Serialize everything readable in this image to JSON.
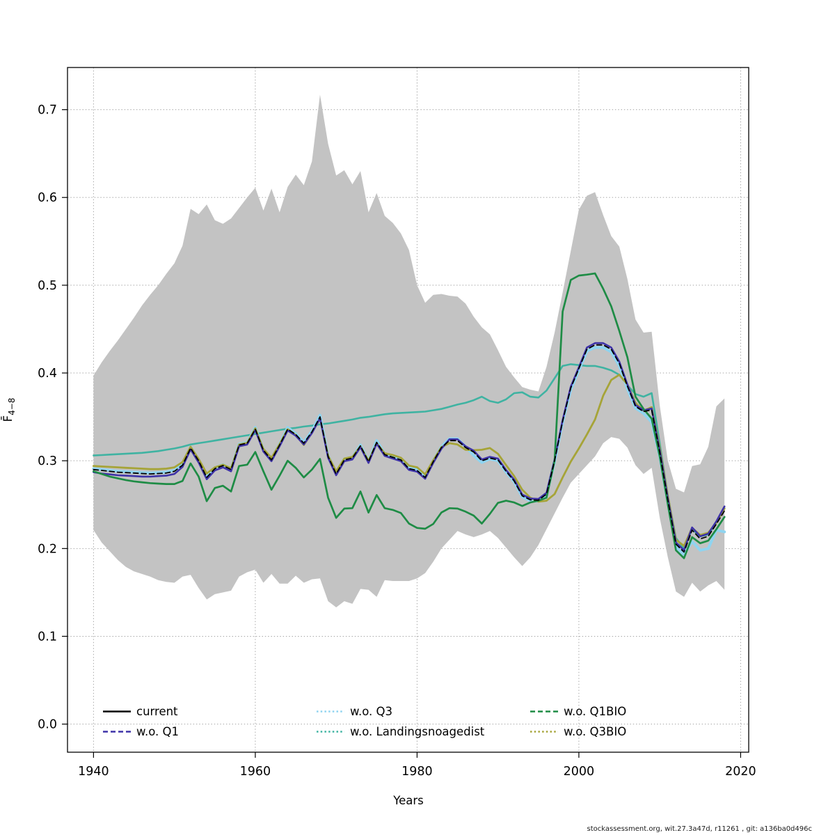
{
  "figure": {
    "background": "#ffffff"
  },
  "footer": {
    "text": "stockassessment.org, wit.27.3a47d, r11261 , git: a136ba0d496c"
  },
  "axes": {
    "xlabel": "Years",
    "ylabel_base": "F̄",
    "ylabel_sub": "4−8"
  },
  "legend": {
    "position": "bottom-inside",
    "items": [
      {
        "key": "current",
        "label": "current",
        "color": "#000000",
        "dash": "solid"
      },
      {
        "key": "wo_q1",
        "label": "w.o. Q1",
        "color": "#3e32a8",
        "dash": "dashed"
      },
      {
        "key": "wo_q3",
        "label": "w.o. Q3",
        "color": "#8fd4f0",
        "dash": "dotted"
      },
      {
        "key": "wo_landingsnoagedist",
        "label": "w.o. Landingsnoagedist",
        "color": "#3fb3a2",
        "dash": "dotted"
      },
      {
        "key": "wo_q1bio",
        "label": "w.o. Q1BIO",
        "color": "#1e8c45",
        "dash": "dashed"
      },
      {
        "key": "wo_q3bio",
        "label": "w.o. Q3BIO",
        "color": "#a6a438",
        "dash": "dotted"
      }
    ]
  },
  "chart_data": {
    "type": "line",
    "title": "",
    "xlabel": "Years",
    "ylabel": "F̄(4−8)",
    "grid": true,
    "xlim": [
      1936.8,
      2021
    ],
    "ylim": [
      -0.032,
      0.748
    ],
    "x_ticks": [
      {
        "label": "1940",
        "value": 1940
      },
      {
        "label": "1960",
        "value": 1960
      },
      {
        "label": "1980",
        "value": 1980
      },
      {
        "label": "2000",
        "value": 2000
      },
      {
        "label": "2020",
        "value": 2020
      }
    ],
    "y_ticks": [
      {
        "label": "0.0",
        "value": 0.0
      },
      {
        "label": "0.1",
        "value": 0.1
      },
      {
        "label": "0.2",
        "value": 0.2
      },
      {
        "label": "0.3",
        "value": 0.3
      },
      {
        "label": "0.4",
        "value": 0.4
      },
      {
        "label": "0.5",
        "value": 0.5
      },
      {
        "label": "0.6",
        "value": 0.6
      },
      {
        "label": "0.7",
        "value": 0.7
      }
    ],
    "years": [
      1940,
      1941,
      1942,
      1943,
      1944,
      1945,
      1946,
      1947,
      1948,
      1949,
      1950,
      1951,
      1952,
      1953,
      1954,
      1955,
      1956,
      1957,
      1958,
      1959,
      1960,
      1961,
      1962,
      1963,
      1964,
      1965,
      1966,
      1967,
      1968,
      1969,
      1970,
      1971,
      1972,
      1973,
      1974,
      1975,
      1976,
      1977,
      1978,
      1979,
      1980,
      1981,
      1982,
      1983,
      1984,
      1985,
      1986,
      1987,
      1988,
      1989,
      1990,
      1991,
      1992,
      1993,
      1994,
      1995,
      1996,
      1997,
      1998,
      1999,
      2000,
      2001,
      2002,
      2003,
      2004,
      2005,
      2006,
      2007,
      2008,
      2009,
      2010,
      2011,
      2012,
      2013,
      2014,
      2015,
      2016,
      2017,
      2018
    ],
    "band": {
      "name": "confidence-band",
      "color": "#c3c3c3",
      "upper": [
        0.397,
        0.412,
        0.425,
        0.437,
        0.45,
        0.463,
        0.477,
        0.489,
        0.5,
        0.513,
        0.525,
        0.545,
        0.587,
        0.581,
        0.592,
        0.574,
        0.57,
        0.576,
        0.588,
        0.6,
        0.611,
        0.585,
        0.61,
        0.583,
        0.612,
        0.626,
        0.614,
        0.641,
        0.717,
        0.661,
        0.625,
        0.631,
        0.615,
        0.63,
        0.583,
        0.605,
        0.579,
        0.571,
        0.559,
        0.54,
        0.5,
        0.48,
        0.489,
        0.49,
        0.488,
        0.487,
        0.479,
        0.464,
        0.452,
        0.444,
        0.426,
        0.407,
        0.395,
        0.384,
        0.381,
        0.379,
        0.407,
        0.446,
        0.492,
        0.539,
        0.586,
        0.602,
        0.606,
        0.58,
        0.556,
        0.544,
        0.507,
        0.461,
        0.446,
        0.447,
        0.363,
        0.3,
        0.268,
        0.264,
        0.294,
        0.296,
        0.316,
        0.362,
        0.371
      ],
      "lower": [
        0.221,
        0.207,
        0.197,
        0.187,
        0.179,
        0.174,
        0.171,
        0.168,
        0.164,
        0.162,
        0.161,
        0.168,
        0.17,
        0.155,
        0.142,
        0.148,
        0.15,
        0.152,
        0.168,
        0.173,
        0.176,
        0.161,
        0.171,
        0.16,
        0.16,
        0.169,
        0.161,
        0.165,
        0.166,
        0.14,
        0.133,
        0.14,
        0.137,
        0.154,
        0.153,
        0.145,
        0.164,
        0.163,
        0.163,
        0.163,
        0.166,
        0.172,
        0.185,
        0.2,
        0.21,
        0.22,
        0.216,
        0.213,
        0.216,
        0.22,
        0.212,
        0.201,
        0.19,
        0.18,
        0.19,
        0.204,
        0.222,
        0.24,
        0.258,
        0.275,
        0.285,
        0.295,
        0.305,
        0.32,
        0.327,
        0.325,
        0.315,
        0.295,
        0.285,
        0.292,
        0.235,
        0.19,
        0.151,
        0.145,
        0.161,
        0.151,
        0.158,
        0.163,
        0.153
      ]
    },
    "series": [
      {
        "key": "wo_landingsnoagedist",
        "name": "w.o. Landingsnoagedist",
        "color": "#3fb3a2",
        "values": [
          0.306,
          0.3065,
          0.307,
          0.3075,
          0.308,
          0.3085,
          0.309,
          0.31,
          0.311,
          0.3125,
          0.314,
          0.316,
          0.3185,
          0.32,
          0.3215,
          0.323,
          0.3245,
          0.326,
          0.3275,
          0.329,
          0.3305,
          0.332,
          0.3335,
          0.335,
          0.3365,
          0.3375,
          0.339,
          0.34,
          0.3415,
          0.3425,
          0.344,
          0.3455,
          0.347,
          0.349,
          0.35,
          0.3515,
          0.353,
          0.354,
          0.3545,
          0.355,
          0.3555,
          0.356,
          0.3575,
          0.359,
          0.3615,
          0.364,
          0.366,
          0.369,
          0.373,
          0.368,
          0.366,
          0.37,
          0.377,
          0.378,
          0.373,
          0.372,
          0.38,
          0.394,
          0.408,
          0.41,
          0.409,
          0.408,
          0.408,
          0.406,
          0.403,
          0.398,
          0.386,
          0.376,
          0.373,
          0.377,
          0.32,
          0.26,
          0.212,
          0.2,
          0.222,
          0.214,
          0.216,
          0.229,
          0.246
        ]
      },
      {
        "key": "wo_q3",
        "name": "w.o. Q3",
        "color": "#8fd4f0",
        "values": [
          0.291,
          0.29,
          0.289,
          0.288,
          0.2875,
          0.287,
          0.2865,
          0.286,
          0.2865,
          0.287,
          0.289,
          0.296,
          0.3155,
          0.301,
          0.282,
          0.292,
          0.2955,
          0.291,
          0.319,
          0.321,
          0.338,
          0.313,
          0.302,
          0.319,
          0.338,
          0.331,
          0.321,
          0.334,
          0.352,
          0.306,
          0.286,
          0.302,
          0.304,
          0.318,
          0.3,
          0.323,
          0.308,
          0.305,
          0.302,
          0.292,
          0.29,
          0.282,
          0.3,
          0.316,
          0.325,
          0.325,
          0.316,
          0.306,
          0.298,
          0.302,
          0.3,
          0.287,
          0.276,
          0.259,
          0.2545,
          0.254,
          0.261,
          0.299,
          0.344,
          0.381,
          0.403,
          0.425,
          0.429,
          0.429,
          0.424,
          0.408,
          0.382,
          0.36,
          0.354,
          0.344,
          0.305,
          0.252,
          0.202,
          0.193,
          0.208,
          0.198,
          0.2,
          0.221,
          0.219
        ]
      },
      {
        "key": "wo_q3bio",
        "name": "w.o. Q3BIO",
        "color": "#a6a438",
        "values": [
          0.294,
          0.2935,
          0.293,
          0.2925,
          0.292,
          0.2915,
          0.291,
          0.2905,
          0.2905,
          0.291,
          0.2925,
          0.2985,
          0.316,
          0.302,
          0.2855,
          0.2925,
          0.2955,
          0.2915,
          0.3185,
          0.3205,
          0.337,
          0.3135,
          0.3035,
          0.319,
          0.336,
          0.3295,
          0.318,
          0.332,
          0.348,
          0.306,
          0.288,
          0.3025,
          0.3045,
          0.3165,
          0.3,
          0.32,
          0.3085,
          0.3065,
          0.3035,
          0.2945,
          0.2925,
          0.2845,
          0.3005,
          0.3155,
          0.32,
          0.3185,
          0.3125,
          0.312,
          0.3125,
          0.3145,
          0.308,
          0.295,
          0.2825,
          0.267,
          0.258,
          0.2535,
          0.2545,
          0.262,
          0.281,
          0.299,
          0.314,
          0.33,
          0.347,
          0.374,
          0.392,
          0.398,
          0.387,
          0.366,
          0.357,
          0.361,
          0.315,
          0.26,
          0.21,
          0.203,
          0.2235,
          0.2155,
          0.218,
          0.2295,
          0.2455
        ]
      },
      {
        "key": "wo_q1",
        "name": "w.o. Q1",
        "color": "#3e32a8",
        "values": [
          0.287,
          0.2855,
          0.2845,
          0.2835,
          0.283,
          0.2825,
          0.282,
          0.282,
          0.2825,
          0.283,
          0.285,
          0.293,
          0.313,
          0.298,
          0.279,
          0.289,
          0.2925,
          0.288,
          0.3165,
          0.3185,
          0.335,
          0.3105,
          0.2995,
          0.3165,
          0.3345,
          0.3285,
          0.3185,
          0.3315,
          0.3485,
          0.3035,
          0.2835,
          0.2995,
          0.3015,
          0.3155,
          0.2975,
          0.3195,
          0.3055,
          0.3025,
          0.2995,
          0.2895,
          0.2875,
          0.2795,
          0.2975,
          0.3135,
          0.3245,
          0.3245,
          0.3165,
          0.3115,
          0.3015,
          0.3045,
          0.3025,
          0.2895,
          0.2785,
          0.2615,
          0.257,
          0.2565,
          0.2635,
          0.3015,
          0.3465,
          0.3845,
          0.4065,
          0.429,
          0.434,
          0.434,
          0.429,
          0.413,
          0.387,
          0.3635,
          0.3575,
          0.3595,
          0.312,
          0.257,
          0.207,
          0.198,
          0.224,
          0.214,
          0.217,
          0.231,
          0.248
        ]
      },
      {
        "key": "wo_q1bio",
        "name": "w.o. Q1BIO",
        "color": "#1e8c45",
        "values": [
          0.288,
          0.285,
          0.282,
          0.28,
          0.278,
          0.2765,
          0.2755,
          0.2745,
          0.274,
          0.2735,
          0.2735,
          0.277,
          0.297,
          0.282,
          0.254,
          0.269,
          0.2715,
          0.265,
          0.294,
          0.2955,
          0.31,
          0.288,
          0.267,
          0.283,
          0.3,
          0.292,
          0.281,
          0.29,
          0.302,
          0.258,
          0.235,
          0.2455,
          0.246,
          0.265,
          0.241,
          0.261,
          0.246,
          0.244,
          0.2405,
          0.2285,
          0.2235,
          0.2225,
          0.228,
          0.241,
          0.246,
          0.2455,
          0.242,
          0.2375,
          0.2285,
          0.2395,
          0.252,
          0.2545,
          0.2525,
          0.2485,
          0.2525,
          0.2545,
          0.258,
          0.3,
          0.47,
          0.506,
          0.511,
          0.512,
          0.5135,
          0.496,
          0.476,
          0.448,
          0.418,
          0.373,
          0.359,
          0.348,
          0.305,
          0.25,
          0.198,
          0.189,
          0.213,
          0.206,
          0.209,
          0.222,
          0.236
        ]
      },
      {
        "key": "current",
        "name": "current",
        "color": "#000000",
        "values": [
          0.29,
          0.289,
          0.288,
          0.287,
          0.2865,
          0.286,
          0.2855,
          0.285,
          0.2855,
          0.286,
          0.288,
          0.295,
          0.3145,
          0.3,
          0.281,
          0.291,
          0.2945,
          0.29,
          0.318,
          0.32,
          0.336,
          0.312,
          0.301,
          0.318,
          0.336,
          0.33,
          0.32,
          0.333,
          0.35,
          0.305,
          0.285,
          0.301,
          0.303,
          0.317,
          0.299,
          0.321,
          0.307,
          0.304,
          0.301,
          0.291,
          0.289,
          0.281,
          0.299,
          0.315,
          0.323,
          0.323,
          0.315,
          0.31,
          0.3,
          0.303,
          0.301,
          0.288,
          0.277,
          0.26,
          0.2555,
          0.255,
          0.262,
          0.3,
          0.345,
          0.383,
          0.405,
          0.427,
          0.432,
          0.432,
          0.427,
          0.411,
          0.385,
          0.362,
          0.356,
          0.358,
          0.31,
          0.255,
          0.205,
          0.196,
          0.221,
          0.211,
          0.214,
          0.228,
          0.243
        ]
      }
    ]
  }
}
